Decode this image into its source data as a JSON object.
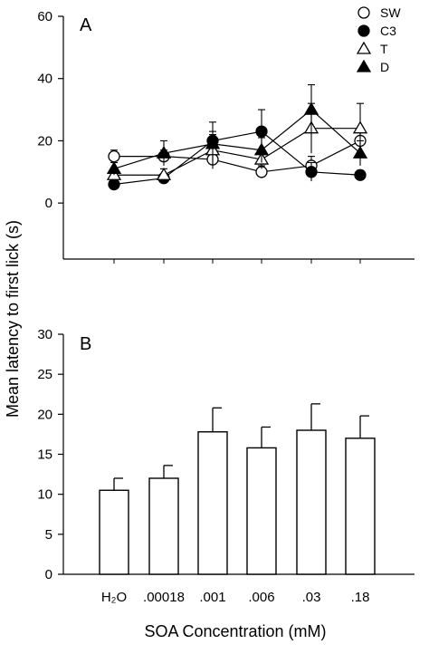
{
  "figure": {
    "ylabel": "Mean latency to first lick (s)",
    "xlabel": "SOA Concentration (mM)",
    "x_tick_labels": [
      "H₂O",
      ".00018",
      ".001",
      ".006",
      ".03",
      ".18"
    ]
  },
  "chart_data": [
    {
      "type": "line",
      "panel_label": "A",
      "categories": [
        "H₂O",
        ".00018",
        ".001",
        ".006",
        ".03",
        ".18"
      ],
      "ylim": [
        -18,
        60
      ],
      "yticks": [
        0,
        20,
        40,
        60
      ],
      "legend_position": "top-right",
      "series": [
        {
          "name": "SW",
          "marker": "open-circle",
          "values": [
            15,
            15,
            14,
            10,
            12,
            20
          ],
          "errors": [
            2,
            2,
            3,
            2,
            3,
            3
          ]
        },
        {
          "name": "C3",
          "marker": "filled-circle",
          "values": [
            6,
            8,
            20,
            23,
            10,
            9
          ],
          "errors": [
            1.5,
            1.5,
            3,
            7,
            3,
            1.5
          ]
        },
        {
          "name": "T",
          "marker": "open-triangle",
          "values": [
            9,
            9,
            17,
            14,
            24,
            24
          ],
          "errors": [
            2,
            2,
            5,
            3,
            8,
            8
          ]
        },
        {
          "name": "D",
          "marker": "filled-triangle",
          "values": [
            11,
            16,
            19,
            17,
            30,
            16
          ],
          "errors": [
            2,
            4,
            7,
            4,
            8,
            4
          ]
        }
      ]
    },
    {
      "type": "bar",
      "panel_label": "B",
      "categories": [
        "H₂O",
        ".00018",
        ".001",
        ".006",
        ".03",
        ".18"
      ],
      "values": [
        10.5,
        12,
        17.8,
        15.8,
        18,
        17
      ],
      "errors": [
        1.5,
        1.6,
        3,
        2.6,
        3.3,
        2.8
      ],
      "ylim": [
        0,
        30
      ],
      "yticks": [
        0,
        5,
        10,
        15,
        20,
        25,
        30
      ]
    }
  ]
}
